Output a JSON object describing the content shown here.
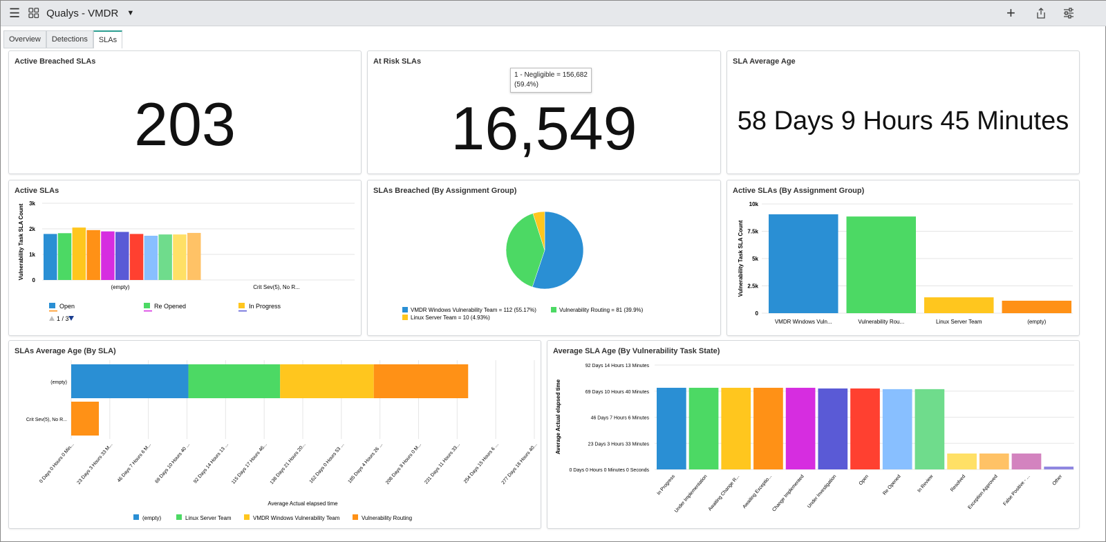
{
  "header": {
    "title": "Qualys - VMDR",
    "icons": [
      "menu-icon",
      "grid-icon",
      "caret-down-icon",
      "plus-icon",
      "share-icon",
      "sliders-icon"
    ]
  },
  "tabs": [
    {
      "label": "Overview"
    },
    {
      "label": "Detections"
    },
    {
      "label": "SLAs",
      "active": true
    }
  ],
  "cards": {
    "breached": {
      "title": "Active Breached SLAs",
      "value": "203"
    },
    "atrisk": {
      "title": "At Risk SLAs",
      "value": "16,549",
      "tooltip": {
        "line1": "1 - Negligible = 156,682",
        "line2": "(59.4%)"
      }
    },
    "avgage": {
      "title": "SLA Average Age",
      "value": "58 Days 9 Hours 45 Minutes"
    }
  },
  "chart_data": [
    {
      "id": "active",
      "title": "Active SLAs",
      "type": "bar",
      "ylabel": "Vulnerability Task SLA Count",
      "ylim": [
        0,
        3000
      ],
      "yticks": [
        "0",
        "1k",
        "2k",
        "3k"
      ],
      "categories": [
        "(empty)",
        "Crit Sev(5), No R..."
      ],
      "series": [
        {
          "name": "Open",
          "color": "#2a8fd4",
          "values": [
            1800,
            0
          ]
        },
        {
          "name": "Re Opened",
          "color": "#4cd964",
          "values": [
            1830,
            0
          ]
        },
        {
          "name": "In Progress",
          "color": "#ffc61e",
          "values": [
            2050,
            0
          ]
        },
        {
          "color": "#ff9116",
          "values": [
            1950,
            0
          ]
        },
        {
          "color": "#d62de0",
          "values": [
            1900,
            0
          ]
        },
        {
          "color": "#5a5ad6",
          "values": [
            1880,
            0
          ]
        },
        {
          "color": "#ff4030",
          "values": [
            1800,
            0
          ]
        },
        {
          "color": "#88bfff",
          "values": [
            1730,
            0
          ]
        },
        {
          "color": "#6fdc8c",
          "values": [
            1780,
            0
          ]
        },
        {
          "color": "#ffe066",
          "values": [
            1780,
            0
          ]
        },
        {
          "color": "#ffc266",
          "values": [
            1840,
            0
          ]
        }
      ],
      "legend_page": "1 / 3"
    },
    {
      "id": "pie",
      "title": "SLAs Breached (By Assignment Group)",
      "type": "pie",
      "slices": [
        {
          "label": "VMDR Windows Vulnerability Team = 112 (55.17%)",
          "value": 112,
          "color": "#2a8fd4"
        },
        {
          "label": "Vulnerability Routing = 81 (39.9%)",
          "value": 81,
          "color": "#4cd964"
        },
        {
          "label": "Linux Server Team = 10 (4.93%)",
          "value": 10,
          "color": "#ffc61e"
        }
      ]
    },
    {
      "id": "group",
      "title": "Active SLAs (By Assignment Group)",
      "type": "bar",
      "ylabel": "Vulnerability Task SLA Count",
      "ylim": [
        0,
        10000
      ],
      "yticks": [
        "0",
        "2.5k",
        "5k",
        "7.5k",
        "10k"
      ],
      "categories": [
        "VMDR Windows Vuln...",
        "Vulnerability Rou...",
        "Linux Server Team",
        "(empty)"
      ],
      "values": [
        9050,
        8850,
        1450,
        1140
      ],
      "colors": [
        "#2a8fd4",
        "#4cd964",
        "#ffc61e",
        "#ff9116"
      ]
    },
    {
      "id": "bysla",
      "title": "SLAs Average Age (By SLA)",
      "type": "bar",
      "orientation": "horizontal",
      "stacked": true,
      "xlabel": "Average Actual elapsed time",
      "xunit": "days",
      "xlim": [
        0,
        277.8
      ],
      "xticks": [
        "0 Days 0 Hours 0 Min...",
        "23 Days 3 Hours 33 M...",
        "46 Days 7 Hours 6 M...",
        "69 Days 10 Hours 40 ...",
        "92 Days 14 Hours 13 ...",
        "115 Days 17 Hours 46...",
        "138 Days 21 Hours 20...",
        "162 Days 0 Hours 53 ...",
        "185 Days 4 Hours 26 ...",
        "208 Days 8 Hours 0 M...",
        "231 Days 11 Hours 33...",
        "254 Days 15 Hours 6 ...",
        "277 Days 18 Hours 40..."
      ],
      "categories": [
        "(empty)",
        "Crit Sev(5), No R..."
      ],
      "series": [
        {
          "name": "(empty)",
          "color": "#2a8fd4",
          "values": [
            70.3,
            0
          ]
        },
        {
          "name": "Linux Server Team",
          "color": "#4cd964",
          "values": [
            55,
            0
          ]
        },
        {
          "name": "VMDR Windows Vulnerability Team",
          "color": "#ffc61e",
          "values": [
            56.2,
            0
          ]
        },
        {
          "name": "Vulnerability Routing",
          "color": "#ff9116",
          "values": [
            56.6,
            16.6
          ]
        }
      ]
    },
    {
      "id": "bystate",
      "title": "Average SLA Age (By Vulnerability Task State)",
      "type": "bar",
      "ylabel": "Average Actual elapsed time",
      "yunit": "days",
      "ylim": [
        0,
        92.59
      ],
      "yticks": [
        "0 Days 0 Hours 0 Minutes 0 Seconds",
        "23 Days 3 Hours 33 Minutes",
        "46 Days 7 Hours 6 Minutes",
        "69 Days 10 Hours 40 Minutes",
        "92 Days 14 Hours 13 Minutes"
      ],
      "categories": [
        "In Progress",
        "Under Implementation",
        "Awaiting Change R...",
        "Awaiting Exceptio...",
        "Change Implemented",
        "Under Investigation",
        "Open",
        "Re Opened",
        "In Review",
        "Resolved",
        "Exception Approved",
        "False Positive - ...",
        "Other"
      ],
      "values": [
        72.4,
        72.4,
        72.4,
        72.4,
        72.4,
        71.8,
        71.8,
        71.2,
        71.2,
        14.1,
        14.1,
        14.1,
        2.5
      ],
      "colors": [
        "#2a8fd4",
        "#4cd964",
        "#ffc61e",
        "#ff9116",
        "#d62de0",
        "#5a5ad6",
        "#ff4030",
        "#88bfff",
        "#6fdc8c",
        "#ffe066",
        "#ffc266",
        "#d383bf",
        "#8f86e0"
      ]
    }
  ]
}
